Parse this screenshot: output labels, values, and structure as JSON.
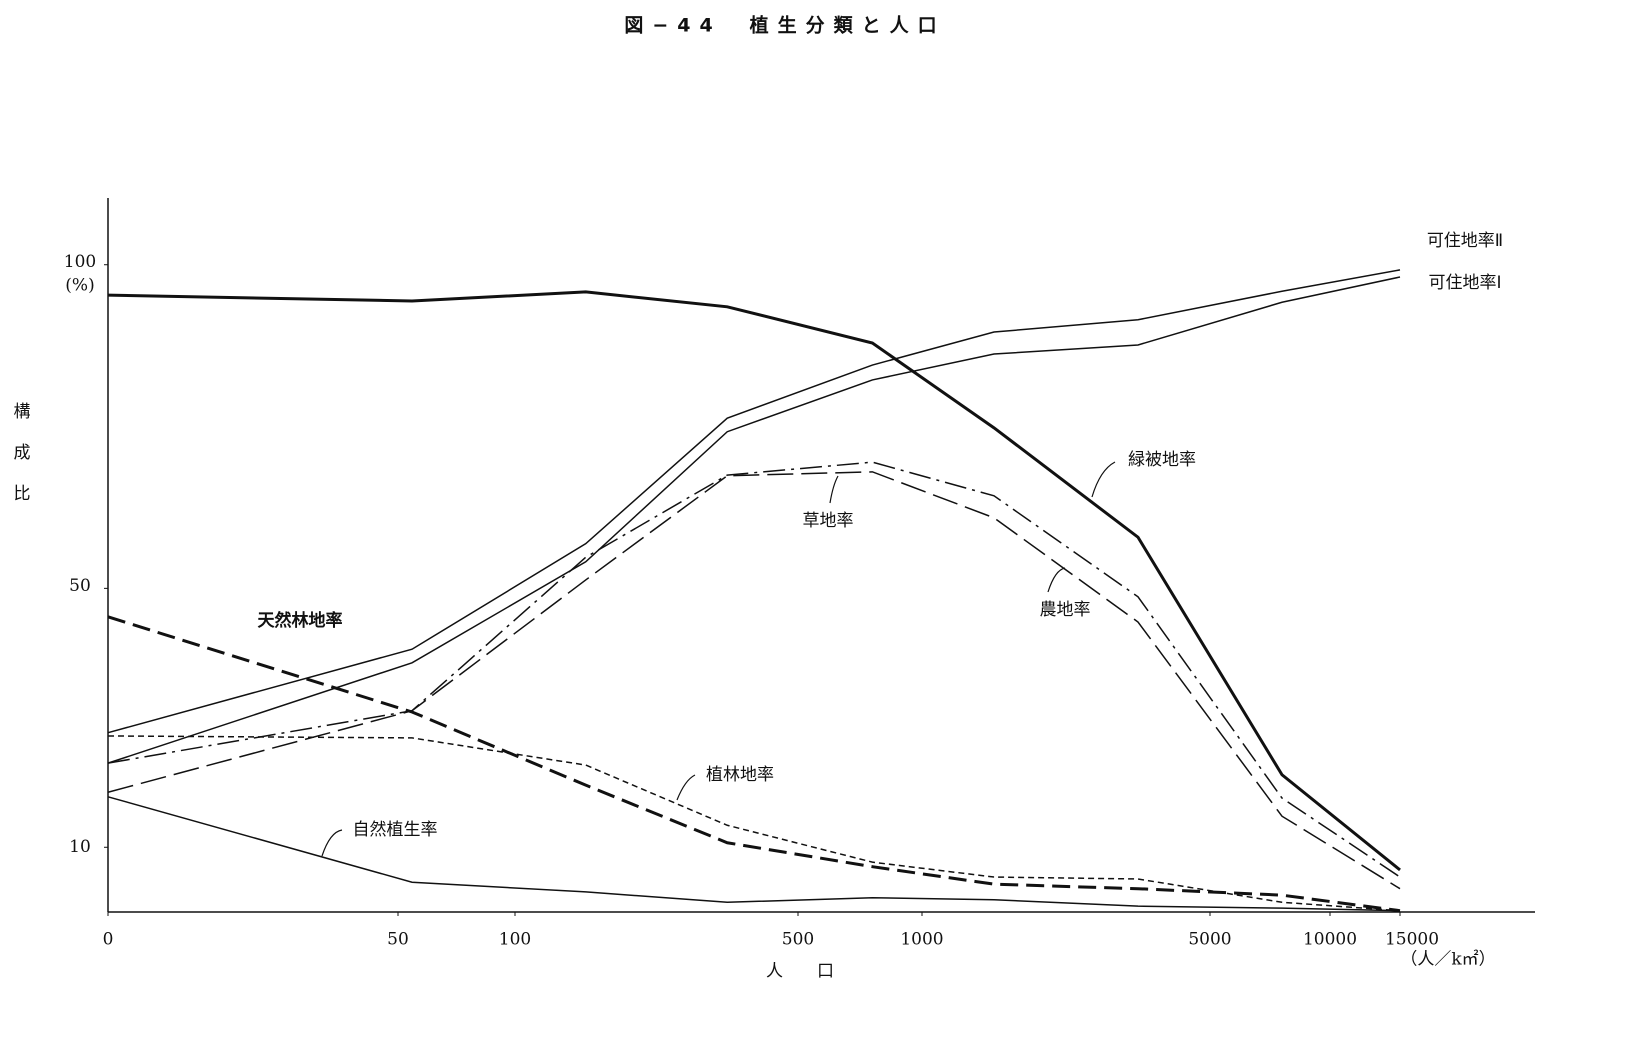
{
  "chart_data": {
    "type": "line",
    "title": "図−44　植生分類と人口",
    "x_label": "人　　口",
    "x_unit": "（人／k㎡）",
    "y_label": "構成比",
    "y_unit": "(%)",
    "x": [
      0,
      56,
      200,
      400,
      800,
      2000,
      4000,
      8000,
      15000
    ],
    "xlim": [
      0,
      15000
    ],
    "xticks": [
      0,
      50,
      100,
      500,
      1000,
      5000,
      10000,
      15000
    ],
    "ylim": [
      0,
      110
    ],
    "yticks": [
      10,
      50,
      100
    ],
    "grid": false,
    "series": [
      {
        "name": "緑被地率",
        "color": "#111",
        "style": "thick",
        "values": [
          95.3,
          94.4,
          95.8,
          93.5,
          87.9,
          74.8,
          57.9,
          21.2,
          6.5
        ]
      },
      {
        "name": "可住地率Ⅱ",
        "color": "#111",
        "style": "solid",
        "values": [
          27.7,
          40.6,
          56.9,
          76.3,
          84.5,
          89.6,
          91.5,
          95.9,
          99.2
        ]
      },
      {
        "name": "可住地率Ⅰ",
        "color": "#111",
        "style": "solid",
        "values": [
          23.0,
          38.5,
          54.1,
          74.2,
          82.2,
          86.2,
          87.6,
          94.2,
          98.1
        ]
      },
      {
        "name": "草地率",
        "color": "#111",
        "style": "dashdot",
        "values": [
          23.0,
          31.1,
          54.8,
          67.5,
          69.5,
          64.3,
          48.7,
          17.6,
          5.4
        ]
      },
      {
        "name": "農地率",
        "color": "#111",
        "style": "longdash",
        "values": [
          18.5,
          31.1,
          51.3,
          67.4,
          68.0,
          60.9,
          44.8,
          14.8,
          3.6
        ]
      },
      {
        "name": "天然林地率",
        "color": "#111",
        "style": "thickdash",
        "values": [
          45.6,
          30.9,
          19.6,
          10.7,
          7.0,
          4.3,
          3.6,
          2.6,
          0.2
        ]
      },
      {
        "name": "植林地率",
        "color": "#111",
        "style": "shortdash",
        "values": [
          27.2,
          26.9,
          22.7,
          13.4,
          7.7,
          5.4,
          5.1,
          1.5,
          0.2
        ]
      },
      {
        "name": "自然植生率",
        "color": "#111",
        "style": "solid",
        "values": [
          17.8,
          4.6,
          3.1,
          1.5,
          2.2,
          1.9,
          0.9,
          0.6,
          0.2
        ]
      }
    ]
  }
}
